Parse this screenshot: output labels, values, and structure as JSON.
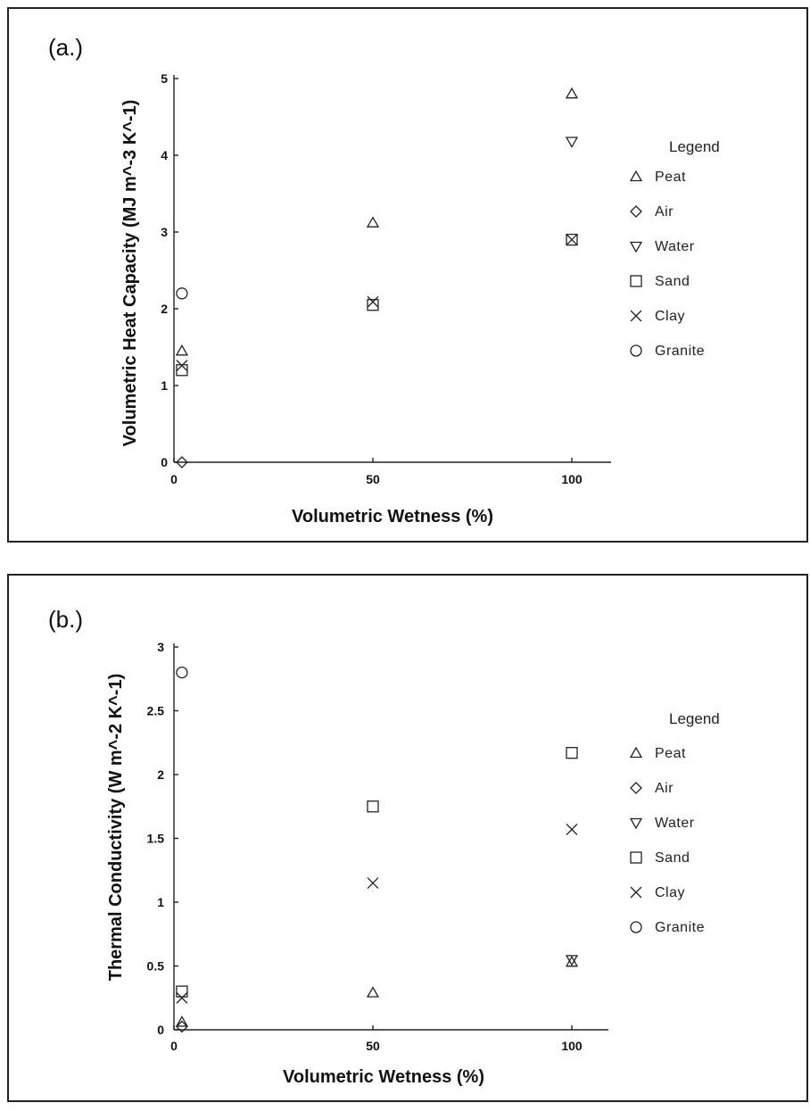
{
  "chart_data": [
    {
      "type": "scatter",
      "panel_label": "(a.)",
      "xlabel": "Volumetric Wetness (%)",
      "ylabel": "Volumetric Heat Capacity (MJ m^-3 K^-1)",
      "xlim": [
        0,
        110
      ],
      "ylim": [
        0,
        5
      ],
      "xticks": [
        0,
        50,
        100
      ],
      "yticks": [
        0,
        1,
        2,
        3,
        4,
        5
      ],
      "legend_title": "Legend",
      "legend_position": "right",
      "series": [
        {
          "name": "Peat",
          "marker": "triangle-up",
          "points": [
            [
              2,
              1.45
            ],
            [
              50,
              3.12
            ],
            [
              100,
              4.8
            ]
          ]
        },
        {
          "name": "Air",
          "marker": "diamond",
          "points": [
            [
              2,
              0.0
            ]
          ]
        },
        {
          "name": "Water",
          "marker": "triangle-down",
          "points": [
            [
              100,
              4.18
            ]
          ]
        },
        {
          "name": "Sand",
          "marker": "square",
          "points": [
            [
              2,
              1.2
            ],
            [
              50,
              2.05
            ],
            [
              100,
              2.9
            ]
          ]
        },
        {
          "name": "Clay",
          "marker": "x",
          "points": [
            [
              2,
              1.26
            ],
            [
              50,
              2.09
            ],
            [
              100,
              2.9
            ]
          ]
        },
        {
          "name": "Granite",
          "marker": "circle",
          "points": [
            [
              2,
              2.2
            ]
          ]
        }
      ]
    },
    {
      "type": "scatter",
      "panel_label": "(b.)",
      "xlabel": "Volumetric Wetness (%)",
      "ylabel": "Thermal Conductivity (W m^-2 K^-1)",
      "xlim": [
        0,
        110
      ],
      "ylim": [
        0,
        3
      ],
      "xticks": [
        0,
        50,
        100
      ],
      "yticks": [
        0,
        0.5,
        1,
        1.5,
        2,
        2.5,
        3
      ],
      "legend_title": "Legend",
      "legend_position": "right",
      "series": [
        {
          "name": "Peat",
          "marker": "triangle-up",
          "points": [
            [
              2,
              0.06
            ],
            [
              50,
              0.29
            ],
            [
              100,
              0.53
            ]
          ]
        },
        {
          "name": "Air",
          "marker": "diamond",
          "points": [
            [
              2,
              0.025
            ]
          ]
        },
        {
          "name": "Water",
          "marker": "triangle-down",
          "points": [
            [
              100,
              0.55
            ]
          ]
        },
        {
          "name": "Sand",
          "marker": "square",
          "points": [
            [
              2,
              0.3
            ],
            [
              50,
              1.75
            ],
            [
              100,
              2.17
            ]
          ]
        },
        {
          "name": "Clay",
          "marker": "x",
          "points": [
            [
              2,
              0.25
            ],
            [
              50,
              1.15
            ],
            [
              100,
              1.57
            ]
          ]
        },
        {
          "name": "Granite",
          "marker": "circle",
          "points": [
            [
              2,
              2.8
            ]
          ]
        }
      ]
    }
  ]
}
